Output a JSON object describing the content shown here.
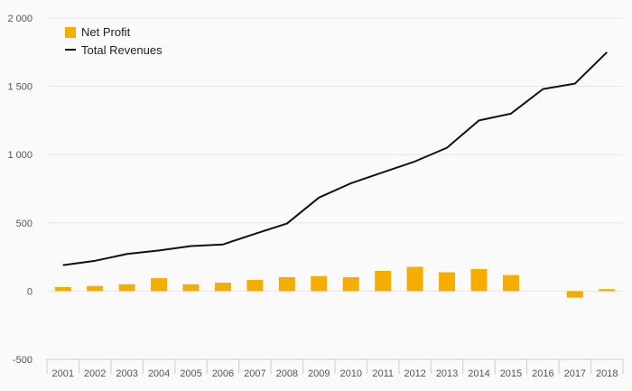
{
  "chart_data": {
    "type": "bar",
    "categories": [
      "2001",
      "2002",
      "2003",
      "2004",
      "2005",
      "2006",
      "2007",
      "2008",
      "2009",
      "2010",
      "2011",
      "2012",
      "2013",
      "2014",
      "2015",
      "2016",
      "2017",
      "2018"
    ],
    "series": [
      {
        "name": "Net Profit",
        "kind": "bar",
        "color": "#f6ad00",
        "values": [
          30,
          38,
          50,
          95,
          50,
          62,
          82,
          102,
          110,
          102,
          148,
          178,
          138,
          162,
          118,
          null,
          -48,
          15
        ]
      },
      {
        "name": "Total Revenues",
        "kind": "line",
        "color": "#111111",
        "values": [
          190,
          222,
          272,
          298,
          330,
          342,
          420,
          495,
          685,
          790,
          870,
          950,
          1050,
          1250,
          1300,
          1480,
          1520,
          1750
        ]
      }
    ],
    "ylim": [
      -500,
      2000
    ],
    "yticks": [
      -500,
      0,
      500,
      1000,
      1500,
      2000
    ],
    "ytick_labels": [
      "-500",
      "0",
      "500",
      "1 000",
      "1 500",
      "2 000"
    ],
    "grid": true,
    "legend_position": "top-left",
    "title": "",
    "xlabel": "",
    "ylabel": ""
  }
}
